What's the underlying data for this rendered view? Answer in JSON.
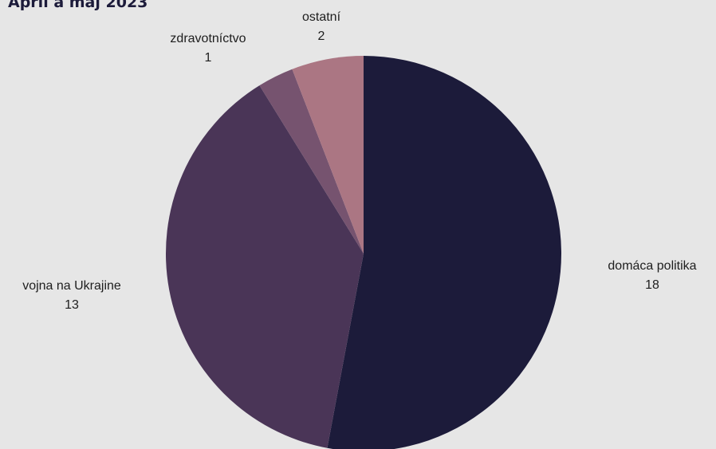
{
  "chart_data": {
    "type": "pie",
    "title": "April a máj 2023",
    "categories": [
      "domáca politika",
      "vojna na Ukrajine",
      "zdravotníctvo",
      "ostatní"
    ],
    "values": [
      18,
      13,
      1,
      2
    ],
    "colors": [
      "#1c1b3a",
      "#4a3557",
      "#76536f",
      "#ab7683"
    ],
    "start_angle_deg": 0,
    "direction": "clockwise",
    "labels_show_values": true
  }
}
